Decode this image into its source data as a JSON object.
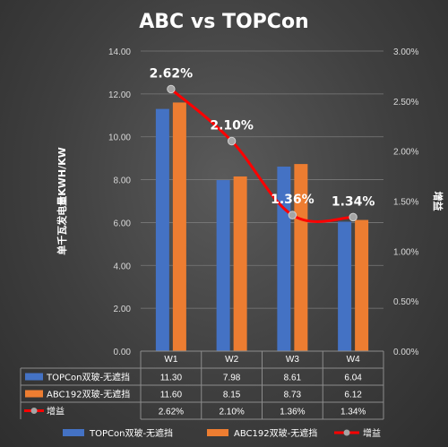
{
  "chart_data": {
    "type": "bar",
    "title": "ABC vs TOPCon",
    "categories": [
      "W1",
      "W2",
      "W3",
      "W4"
    ],
    "ylabel": "单千瓦发电量KWH/KW",
    "y2label": "增益",
    "ylim": [
      0,
      14
    ],
    "y_ticks": [
      "0.00",
      "2.00",
      "4.00",
      "6.00",
      "8.00",
      "10.00",
      "12.00",
      "14.00"
    ],
    "y2lim": [
      0,
      0.03
    ],
    "y2_ticks": [
      "0.00%",
      "0.50%",
      "1.00%",
      "1.50%",
      "2.00%",
      "2.50%",
      "3.00%"
    ],
    "grid": true,
    "legend_position": "bottom",
    "series": [
      {
        "name": "TOPCon双玻-无遮挡",
        "type": "bar",
        "axis": "left",
        "color": "#4472c4",
        "values": [
          11.3,
          7.98,
          8.61,
          6.04
        ],
        "table_values": [
          "11.30",
          "7.98",
          "8.61",
          "6.04"
        ]
      },
      {
        "name": "ABC192双玻-无遮挡",
        "type": "bar",
        "axis": "left",
        "color": "#ed7d31",
        "values": [
          11.6,
          8.15,
          8.73,
          6.12
        ],
        "table_values": [
          "11.60",
          "8.15",
          "8.73",
          "6.12"
        ]
      },
      {
        "name": "增益",
        "type": "line",
        "axis": "right",
        "color": "#ff0000",
        "marker_color": "#a5a5a5",
        "values": [
          0.0262,
          0.021,
          0.0136,
          0.0134
        ],
        "data_labels": [
          "2.62%",
          "2.10%",
          "1.36%",
          "1.34%"
        ],
        "table_values": [
          "2.62%",
          "2.10%",
          "1.36%",
          "1.34%"
        ]
      }
    ]
  }
}
